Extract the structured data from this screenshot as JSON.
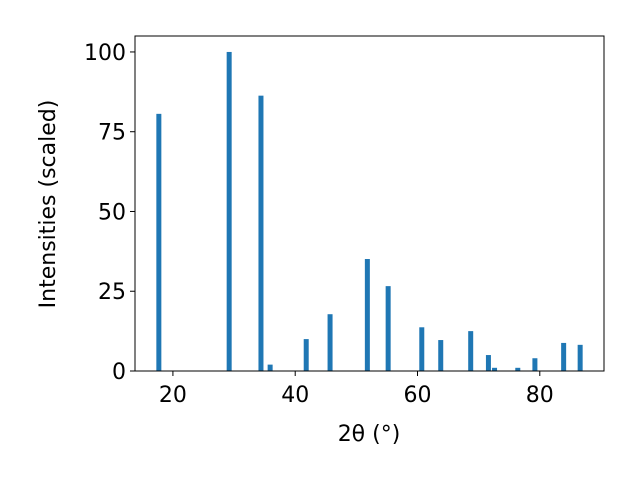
{
  "chart_data": {
    "type": "bar",
    "x": [
      17.7,
      29.2,
      34.4,
      35.9,
      41.8,
      45.7,
      51.8,
      55.2,
      60.7,
      63.8,
      68.7,
      71.6,
      72.6,
      76.4,
      79.2,
      83.9,
      86.6
    ],
    "values": [
      80.6,
      100,
      86.3,
      2,
      10,
      17.8,
      35.1,
      26.6,
      13.7,
      9.7,
      12.5,
      5,
      1,
      1,
      4,
      8.8,
      8.2
    ],
    "color": "#1f77b4",
    "xlabel": "2θ (°)",
    "ylabel": "Intensities (scaled)",
    "xlim": [
      13.8,
      90.5
    ],
    "ylim": [
      0,
      105
    ],
    "xticks": [
      20,
      40,
      60,
      80
    ],
    "yticks": [
      0,
      25,
      50,
      75,
      100
    ],
    "grid": false
  }
}
